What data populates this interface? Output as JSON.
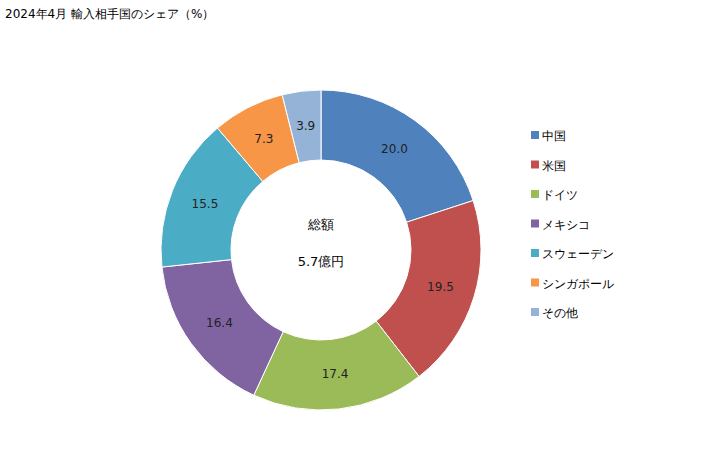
{
  "chart_data": {
    "type": "pie",
    "title": "2024年4月 輸入相手国のシェア（%）",
    "categories": [
      "中国",
      "米国",
      "ドイツ",
      "メキシコ",
      "スウェーデン",
      "シンガポール",
      "その他"
    ],
    "values": [
      20.0,
      19.5,
      17.4,
      16.4,
      15.5,
      7.3,
      3.9
    ],
    "value_labels": [
      "20.0",
      "19.5",
      "17.4",
      "16.4",
      "15.5",
      "7.3",
      "3.9"
    ],
    "colors": [
      "#4f81bd",
      "#c0504d",
      "#9bbb59",
      "#8064a2",
      "#4bacc6",
      "#f79646",
      "#95b3d7"
    ],
    "annotations": [
      "総額",
      "5.7億円"
    ],
    "data_labels": true,
    "legend": "right"
  }
}
